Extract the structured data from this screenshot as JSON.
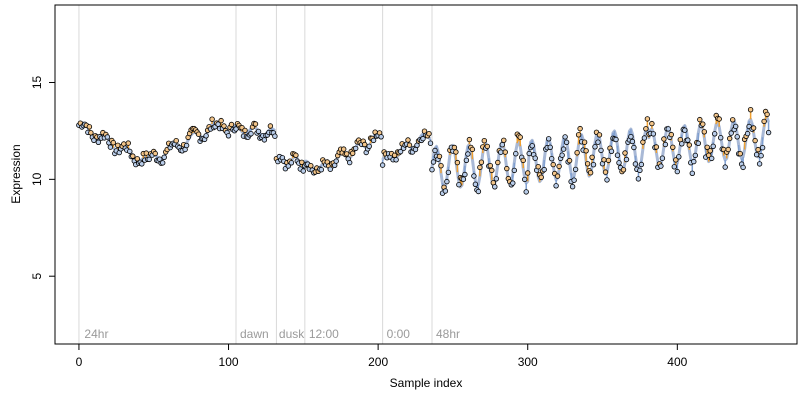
{
  "chart_data": {
    "type": "scatter",
    "title": "",
    "xlabel": "Sample index",
    "ylabel": "Expression",
    "xlim": [
      -16,
      480
    ],
    "ylim": [
      1.5,
      19
    ],
    "x_ticks": [
      0,
      100,
      200,
      300,
      400
    ],
    "y_ticks": [
      5,
      10,
      15
    ],
    "grid": false,
    "legend": "none",
    "colors": {
      "fit_line": "#a9b9d6",
      "residual_up": "#f0a030",
      "residual_down": "#7f9fd0",
      "point_fill_up": "#f3c58a",
      "point_fill_down": "#b9cdea",
      "point_stroke": "#000000",
      "vline": "#d9d9d9",
      "annotation": "#9a9a9a"
    },
    "vlines": [
      0,
      105,
      132,
      151,
      203,
      236
    ],
    "annotations": [
      {
        "x": 3,
        "text": "24hr"
      },
      {
        "x": 107,
        "text": "dawn"
      },
      {
        "x": 133,
        "text": "dusk"
      },
      {
        "x": 153,
        "text": "12:00"
      },
      {
        "x": 205,
        "text": "0:00"
      },
      {
        "x": 238,
        "text": "48hr"
      }
    ],
    "segments": [
      {
        "x0": 0,
        "x1": 45,
        "y0": 12.8,
        "y1": 10.9,
        "amp": 0.25,
        "period": 14
      },
      {
        "x0": 45,
        "x1": 90,
        "y0": 10.9,
        "y1": 12.7,
        "amp": 0.25,
        "period": 14
      },
      {
        "x0": 90,
        "x1": 131,
        "y0": 12.7,
        "y1": 12.4,
        "amp": 0.2,
        "period": 12
      },
      {
        "x0": 132,
        "x1": 150,
        "y0": 11.0,
        "y1": 10.9,
        "amp": 0.25,
        "period": 10
      },
      {
        "x0": 150,
        "x1": 160,
        "y0": 10.9,
        "y1": 10.4,
        "amp": 0.15,
        "period": 10
      },
      {
        "x0": 160,
        "x1": 202,
        "y0": 10.4,
        "y1": 12.3,
        "amp": 0.25,
        "period": 12
      },
      {
        "x0": 203,
        "x1": 235,
        "y0": 11.0,
        "y1": 12.3,
        "amp": 0.25,
        "period": 12
      },
      {
        "x0": 236,
        "x1": 300,
        "y0": 10.6,
        "y1": 10.9,
        "amp": 1.1,
        "period": 11
      },
      {
        "x0": 300,
        "x1": 380,
        "y0": 10.9,
        "y1": 11.6,
        "amp": 1.1,
        "period": 11
      },
      {
        "x0": 380,
        "x1": 461,
        "y0": 11.6,
        "y1": 12.2,
        "amp": 1.0,
        "period": 11
      }
    ],
    "n_points": 462
  }
}
